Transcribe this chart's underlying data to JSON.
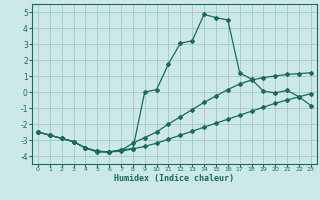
{
  "bg_color": "#cce8e8",
  "grid_color": "#aacccc",
  "line_color": "#1a6b5a",
  "xlim": [
    -0.5,
    23.5
  ],
  "ylim": [
    -4.5,
    5.5
  ],
  "xticks": [
    0,
    1,
    2,
    3,
    4,
    5,
    6,
    7,
    8,
    9,
    10,
    11,
    12,
    13,
    14,
    15,
    16,
    17,
    18,
    19,
    20,
    21,
    22,
    23
  ],
  "yticks": [
    -4,
    -3,
    -2,
    -1,
    0,
    1,
    2,
    3,
    4,
    5
  ],
  "xlabel": "Humidex (Indice chaleur)",
  "line1_x": [
    0,
    1,
    2,
    3,
    4,
    5,
    6,
    7,
    8,
    9,
    10,
    11,
    12,
    13,
    14,
    15,
    16,
    17,
    18,
    19,
    20,
    21,
    22,
    23
  ],
  "line1_y": [
    -2.5,
    -2.7,
    -2.9,
    -3.1,
    -3.5,
    -3.7,
    -3.75,
    -3.7,
    -3.55,
    -3.4,
    -3.2,
    -2.95,
    -2.7,
    -2.45,
    -2.2,
    -1.95,
    -1.7,
    -1.45,
    -1.2,
    -0.95,
    -0.7,
    -0.5,
    -0.3,
    -0.1
  ],
  "line2_x": [
    0,
    1,
    2,
    3,
    4,
    5,
    6,
    7,
    8,
    9,
    10,
    11,
    12,
    13,
    14,
    15,
    16,
    17,
    18,
    19,
    20,
    21,
    22,
    23
  ],
  "line2_y": [
    -2.5,
    -2.7,
    -2.9,
    -3.1,
    -3.5,
    -3.7,
    -3.75,
    -3.65,
    -3.2,
    -2.85,
    -2.5,
    -2.0,
    -1.55,
    -1.1,
    -0.65,
    -0.25,
    0.15,
    0.5,
    0.75,
    0.9,
    1.0,
    1.1,
    1.15,
    1.2
  ],
  "line3_x": [
    0,
    1,
    2,
    3,
    4,
    5,
    6,
    7,
    8,
    9,
    10,
    11,
    12,
    13,
    14,
    15,
    16,
    17,
    18,
    19,
    20,
    21,
    22,
    23
  ],
  "line3_y": [
    -2.5,
    -2.7,
    -2.9,
    -3.1,
    -3.5,
    -3.75,
    -3.75,
    -3.6,
    -3.55,
    0.0,
    0.15,
    1.75,
    3.05,
    3.2,
    4.85,
    4.65,
    4.5,
    1.2,
    0.8,
    0.05,
    -0.05,
    0.1,
    -0.3,
    -0.85
  ]
}
